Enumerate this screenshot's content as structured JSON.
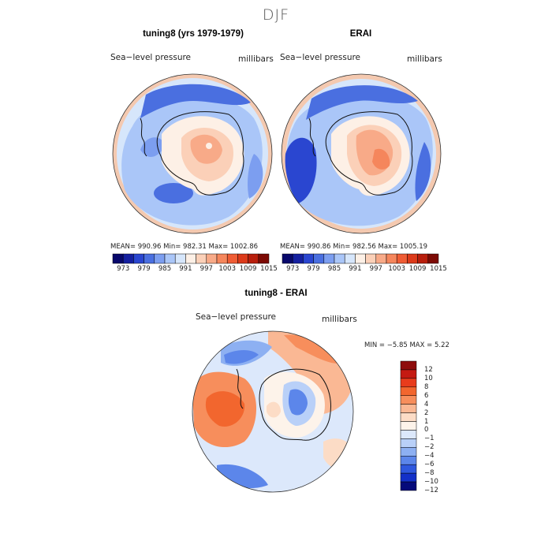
{
  "title": "DJF",
  "panels": [
    {
      "title": "tuning8 (yrs 1979-1979)",
      "left_label": "Sea−level pressure",
      "right_label": "millibars",
      "stats": "MEAN= 990.96   Min= 982.31   Max= 1002.86"
    },
    {
      "title": "ERAI",
      "left_label": "Sea−level pressure",
      "right_label": "millibars",
      "stats": "MEAN= 990.86   Min= 982.56   Max= 1005.19"
    },
    {
      "title": "tuning8 - ERAI",
      "left_label": "Sea−level pressure",
      "right_label": "millibars",
      "stats": "MIN =   −5.85  MAX =    5.22"
    }
  ],
  "chart_data": [
    {
      "type": "heatmap",
      "title": "tuning8 (yrs 1979-1979)",
      "variable": "Sea-level pressure",
      "units": "millibars",
      "mean": 990.96,
      "min": 982.31,
      "max": 1002.86,
      "colorbar_ticks": [
        973,
        979,
        985,
        991,
        997,
        1003,
        1009,
        1015
      ]
    },
    {
      "type": "heatmap",
      "title": "ERAI",
      "variable": "Sea-level pressure",
      "units": "millibars",
      "mean": 990.86,
      "min": 982.56,
      "max": 1005.19,
      "colorbar_ticks": [
        973,
        979,
        985,
        991,
        997,
        1003,
        1009,
        1015
      ]
    },
    {
      "type": "heatmap",
      "title": "tuning8 - ERAI",
      "variable": "Sea-level pressure",
      "units": "millibars",
      "min": -5.85,
      "max": 5.22,
      "colorbar_ticks": [
        "12",
        "10",
        "8",
        "6",
        "4",
        "2",
        "1",
        "0",
        "−1",
        "−2",
        "−4",
        "−6",
        "−8",
        "−10",
        "−12"
      ]
    }
  ],
  "colors": {
    "abs_scale": [
      "#08086b",
      "#1520a0",
      "#2a46d0",
      "#4a6fe0",
      "#7c9ef0",
      "#aac6f8",
      "#d6e6fb",
      "#fdf0e6",
      "#fbd0b8",
      "#f8aa88",
      "#f5865c",
      "#ef5c34",
      "#dc3a1a",
      "#b81e0c",
      "#7c0a04"
    ],
    "diff_scale": [
      "#8e0c0c",
      "#c41a12",
      "#e83c1c",
      "#f2662e",
      "#f78e5c",
      "#fab894",
      "#fcdcc6",
      "#fdf3ea",
      "#dce8fb",
      "#b9d0f8",
      "#8db0f2",
      "#5c86ea",
      "#2f58de",
      "#1330c8",
      "#050a7a"
    ]
  }
}
